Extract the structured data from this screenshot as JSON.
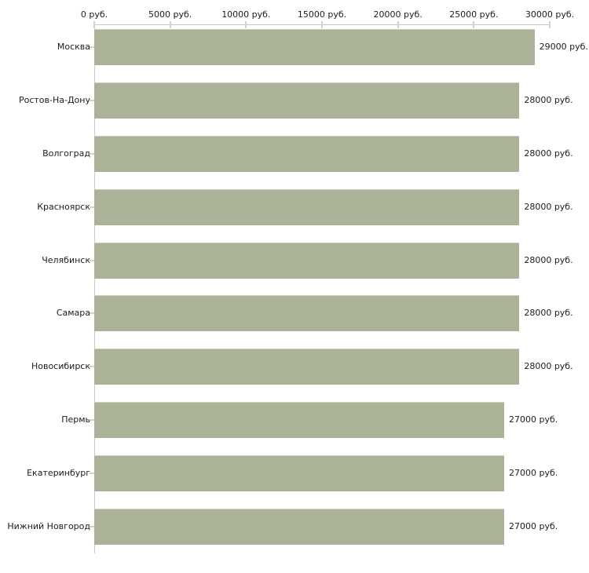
{
  "chart_data": {
    "type": "bar",
    "orientation": "horizontal",
    "title": "",
    "xlabel": "",
    "ylabel": "",
    "unit": "руб.",
    "categories": [
      "Москва",
      "Ростов-На-Дону",
      "Волгоград",
      "Красноярск",
      "Челябинск",
      "Самара",
      "Новосибирск",
      "Пермь",
      "Екатеринбург",
      "Нижний Новгород"
    ],
    "values": [
      29000,
      28000,
      28000,
      28000,
      28000,
      28000,
      28000,
      27000,
      27000,
      27000
    ],
    "value_labels": [
      "29000 руб.",
      "28000 руб.",
      "28000 руб.",
      "28000 руб.",
      "28000 руб.",
      "28000 руб.",
      "28000 руб.",
      "27000 руб.",
      "27000 руб.",
      "27000 руб."
    ],
    "x_ticks": [
      {
        "value": 0,
        "label": "0 руб."
      },
      {
        "value": 5000,
        "label": "5000 руб."
      },
      {
        "value": 10000,
        "label": "10000 руб."
      },
      {
        "value": 15000,
        "label": "15000 руб."
      },
      {
        "value": 20000,
        "label": "20000 руб."
      },
      {
        "value": 25000,
        "label": "25000 руб."
      },
      {
        "value": 30000,
        "label": "30000 руб."
      }
    ],
    "xlim": [
      0,
      30000
    ],
    "grid": false,
    "legend": "none",
    "colors": {
      "bar_fill": "#aab398",
      "bar_edge_highlight": "#cdd1c0",
      "axis_line_horizontal": "#c6c6c3",
      "axis_line_vertical": "#c9c9c9",
      "tick_mark": "#d4d6b8",
      "text": "#1c1c1c",
      "background": "#ffffff"
    }
  }
}
